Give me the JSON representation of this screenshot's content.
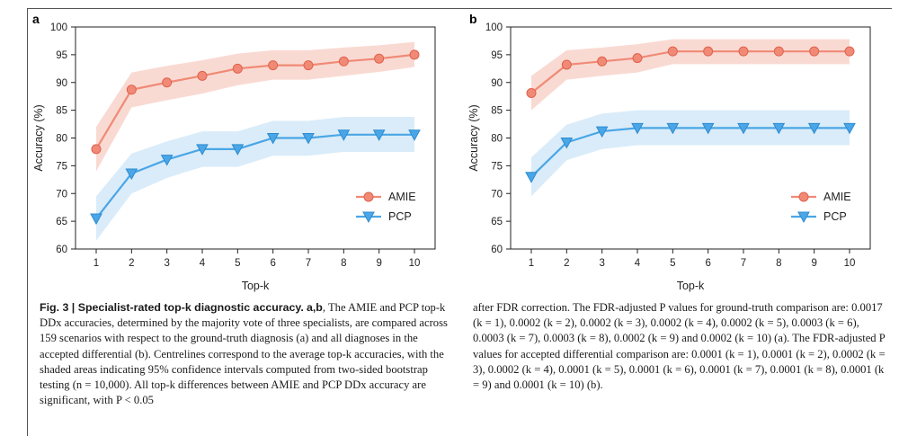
{
  "figure": {
    "panel_a_letter": "a",
    "panel_b_letter": "b"
  },
  "chart_data": [
    {
      "type": "line",
      "panel": "a",
      "xlabel": "Top-k",
      "ylabel": "Accuracy (%)",
      "x": [
        1,
        2,
        3,
        4,
        5,
        6,
        7,
        8,
        9,
        10
      ],
      "xlim": [
        1,
        10
      ],
      "ylim": [
        60,
        100
      ],
      "yticks": [
        60,
        65,
        70,
        75,
        80,
        85,
        90,
        95,
        100
      ],
      "legend_position": "lower-right",
      "series": [
        {
          "name": "AMIE",
          "color": "#f08a76",
          "band_color": "#f8d3cb",
          "marker": "circle",
          "values": [
            78,
            88.7,
            90,
            91.2,
            92.5,
            93.1,
            93.1,
            93.8,
            94.3,
            95
          ],
          "ci_lower": [
            74,
            85.5,
            86.8,
            88,
            89.5,
            90.5,
            90.5,
            91.2,
            91.9,
            92.8
          ],
          "ci_upper": [
            82,
            91.8,
            93,
            94,
            95.2,
            95.8,
            95.8,
            96.3,
            96.7,
            97.3
          ]
        },
        {
          "name": "PCP",
          "color": "#4aa6e6",
          "band_color": "#d4e9f8",
          "marker": "triangle-down",
          "values": [
            65.5,
            73.6,
            76.1,
            78,
            78,
            80,
            80,
            80.6,
            80.6,
            80.6
          ],
          "ci_lower": [
            61.5,
            70,
            72.8,
            74.8,
            74.8,
            76.8,
            76.8,
            77.5,
            77.5,
            77.5
          ],
          "ci_upper": [
            69.5,
            77.2,
            79.4,
            81.2,
            81.2,
            83.1,
            83.1,
            83.8,
            83.8,
            83.8
          ]
        }
      ]
    },
    {
      "type": "line",
      "panel": "b",
      "xlabel": "Top-k",
      "ylabel": "Accuracy (%)",
      "x": [
        1,
        2,
        3,
        4,
        5,
        6,
        7,
        8,
        9,
        10
      ],
      "xlim": [
        1,
        10
      ],
      "ylim": [
        60,
        100
      ],
      "yticks": [
        60,
        65,
        70,
        75,
        80,
        85,
        90,
        95,
        100
      ],
      "legend_position": "lower-right",
      "series": [
        {
          "name": "AMIE",
          "color": "#f08a76",
          "band_color": "#f8d3cb",
          "marker": "circle",
          "values": [
            88.1,
            93.2,
            93.8,
            94.4,
            95.6,
            95.6,
            95.6,
            95.6,
            95.6,
            95.6
          ],
          "ci_lower": [
            85,
            90.5,
            91.2,
            91.8,
            93.3,
            93.3,
            93.3,
            93.3,
            93.3,
            93.3
          ],
          "ci_upper": [
            91.2,
            95.8,
            96.3,
            96.9,
            97.8,
            97.8,
            97.8,
            97.8,
            97.8,
            97.8
          ]
        },
        {
          "name": "PCP",
          "color": "#4aa6e6",
          "band_color": "#d4e9f8",
          "marker": "triangle-down",
          "values": [
            73,
            79.2,
            81.2,
            81.8,
            81.8,
            81.8,
            81.8,
            81.8,
            81.8,
            81.8
          ],
          "ci_lower": [
            69.5,
            76,
            78,
            78.7,
            78.7,
            78.7,
            78.7,
            78.7,
            78.7,
            78.7
          ],
          "ci_upper": [
            76.5,
            82.4,
            84.4,
            85,
            85,
            85,
            85,
            85,
            85,
            85
          ]
        }
      ]
    }
  ],
  "caption": {
    "title": "Fig. 3 | Specialist-rated top-k diagnostic accuracy.",
    "label_ab": "a,b",
    "left_text": "The AMIE and PCP top-k DDx accuracies, determined by the majority vote of three specialists, are compared across 159 scenarios with respect to the ground-truth diagnosis (a) and all diagnoses in the accepted differential (b). Centrelines correspond to the average top-k accuracies, with the shaded areas indicating 95% confidence intervals computed from two-sided bootstrap testing (n = 10,000). All top-k differences between AMIE and PCP DDx accuracy are significant, with P < 0.05",
    "right_text": "after FDR correction. The FDR-adjusted P values for ground-truth comparison are: 0.0017 (k = 1), 0.0002 (k = 2), 0.0002 (k = 3), 0.0002 (k = 4), 0.0002 (k = 5), 0.0003 (k = 6), 0.0003 (k = 7), 0.0003 (k = 8), 0.0002 (k = 9) and 0.0002 (k = 10) (a). The FDR-adjusted P values for accepted differential comparison are: 0.0001 (k = 1), 0.0001 (k = 2), 0.0002 (k = 3), 0.0002 (k = 4), 0.0001 (k = 5), 0.0001 (k = 6), 0.0001 (k = 7), 0.0001 (k = 8), 0.0001 (k = 9) and 0.0001 (k = 10) (b)."
  }
}
